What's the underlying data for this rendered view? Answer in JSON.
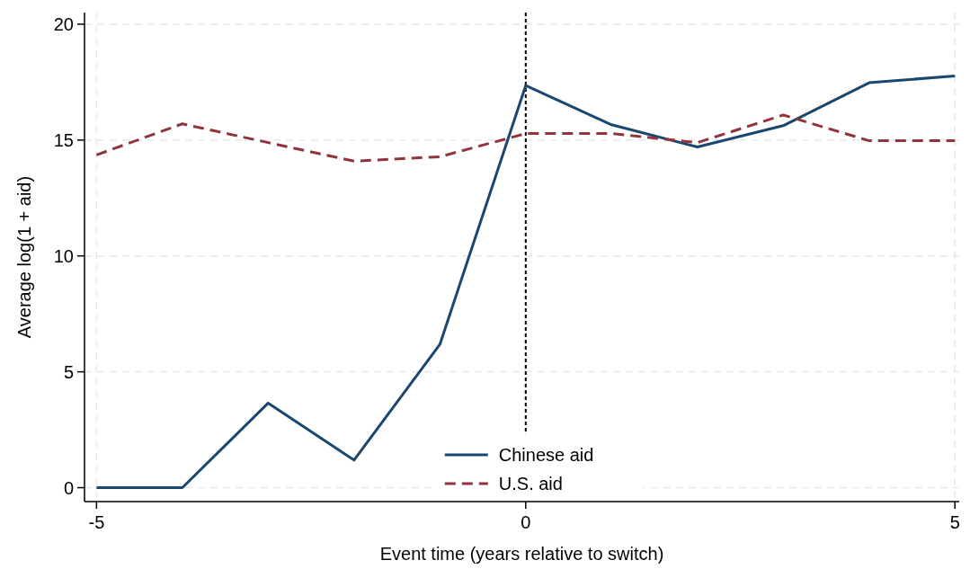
{
  "chart_data": {
    "type": "line",
    "xlabel": "Event time (years relative to switch)",
    "ylabel": "Average log(1 + aid)",
    "x": [
      -5,
      -4,
      -3,
      -2,
      -1,
      0,
      1,
      2,
      3,
      4,
      5
    ],
    "series": [
      {
        "name": "Chinese aid",
        "color": "#1a476f",
        "line_style": "solid",
        "values": [
          0,
          0,
          3.65,
          1.19,
          6.18,
          17.35,
          15.66,
          14.7,
          15.62,
          17.47,
          17.77
        ]
      },
      {
        "name": "U.S. aid",
        "color": "#90353b",
        "line_style": "dashed",
        "values": [
          14.36,
          15.7,
          14.89,
          14.09,
          14.28,
          15.28,
          15.28,
          14.89,
          16.08,
          14.97,
          14.97
        ]
      }
    ],
    "xlim": [
      -5.14,
      5.05
    ],
    "ylim": [
      -0.6,
      20.5
    ],
    "xticks": [
      -5,
      0,
      5
    ],
    "yticks": [
      0,
      5,
      10,
      15,
      20
    ],
    "grid": true,
    "legend": "bottom",
    "ref_lines": [
      {
        "axis": "x",
        "value": 0,
        "color": "#000000",
        "line_style": "dotted"
      }
    ]
  }
}
